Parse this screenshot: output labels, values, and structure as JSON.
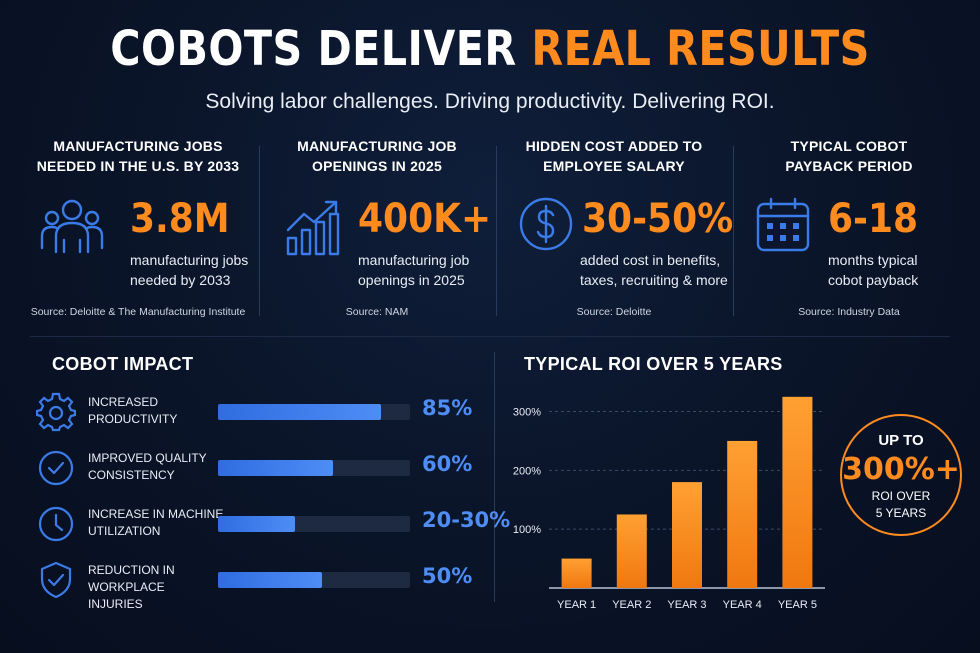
{
  "header": {
    "title_main": "COBOTS DELIVER ",
    "title_accent": "REAL RESULTS",
    "subtitle": "Solving labor challenges. Driving productivity. Delivering ROI."
  },
  "stats": [
    {
      "heading_line1": "MANUFACTURING JOBS",
      "heading_line2": "NEEDED IN THE U.S. BY 2033",
      "icon": "people-icon",
      "value": "3.8M",
      "desc_line1": "manufacturing jobs",
      "desc_line2": "needed by 2033",
      "source": "Source: Deloitte & The Manufacturing Institute"
    },
    {
      "heading_line1": "MANUFACTURING JOB",
      "heading_line2": "OPENINGS IN 2025",
      "icon": "growth-chart-icon",
      "value": "400K+",
      "desc_line1": "manufacturing job",
      "desc_line2": "openings in 2025",
      "source": "Source: NAM"
    },
    {
      "heading_line1": "HIDDEN COST ADDED TO",
      "heading_line2": "EMPLOYEE SALARY",
      "icon": "dollar-icon",
      "value": "30-50%",
      "desc_line1": "added cost in benefits,",
      "desc_line2": "taxes, recruiting & more",
      "source": "Source: Deloitte"
    },
    {
      "heading_line1": "TYPICAL COBOT",
      "heading_line2": "PAYBACK PERIOD",
      "icon": "calendar-icon",
      "value": "6-18",
      "desc_line1": "months typical",
      "desc_line2": "cobot payback",
      "source": "Source: Industry Data"
    }
  ],
  "impact": {
    "title": "COBOT IMPACT",
    "items": [
      {
        "icon": "gear-icon",
        "label_line1": "INCREASED",
        "label_line2": "PRODUCTIVITY",
        "value": "85%",
        "fill": 0.85
      },
      {
        "icon": "check-circle-icon",
        "label_line1": "IMPROVED QUALITY",
        "label_line2": "CONSISTENCY",
        "value": "60%",
        "fill": 0.6
      },
      {
        "icon": "clock-icon",
        "label_line1": "INCREASE IN MACHINE",
        "label_line2": "UTILIZATION",
        "value": "20-30%",
        "fill": 0.4
      },
      {
        "icon": "shield-check-icon",
        "label_line1": "REDUCTION IN WORKPLACE",
        "label_line2": "INJURIES",
        "value": "50%",
        "fill": 0.54
      }
    ]
  },
  "colors": {
    "accent_orange": "#ff8a1e",
    "accent_blue": "#4e8df5",
    "background": "#0a1428"
  },
  "chart_data": {
    "type": "bar",
    "title": "TYPICAL ROI OVER 5 YEARS",
    "categories": [
      "YEAR 1",
      "YEAR 2",
      "YEAR 3",
      "YEAR 4",
      "YEAR 5"
    ],
    "values": [
      50,
      125,
      180,
      250,
      325
    ],
    "y_ticks": [
      "100%",
      "200%",
      "300%"
    ],
    "y_tick_values": [
      100,
      200,
      300
    ],
    "ylim": [
      0,
      340
    ],
    "grid": true,
    "gridline_style": "dashed"
  },
  "badge": {
    "line1": "UP TO",
    "line2": "300%+",
    "line3": "ROI OVER",
    "line4": "5 YEARS"
  }
}
